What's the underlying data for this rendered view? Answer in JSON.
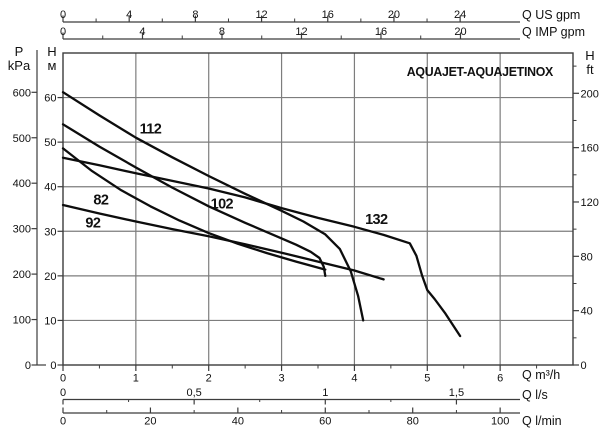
{
  "title": "AQUAJET-AQUAJETINOX",
  "axes": {
    "left_pressure": {
      "sym": "P",
      "unit": "kPa",
      "ticks": [
        600,
        500,
        400,
        300,
        200,
        100,
        0
      ],
      "to_m": 0.10197
    },
    "left_head": {
      "sym": "H",
      "unit": "м",
      "ticks": [
        60,
        50,
        40,
        30,
        20,
        10,
        0
      ],
      "to_m": 1
    },
    "right_head_ft": {
      "sym": "H",
      "unit": "ft",
      "ticks": [
        200,
        160,
        120,
        80,
        40,
        0
      ],
      "minor_ticks": [
        220,
        180,
        140,
        100,
        60,
        20
      ],
      "to_m": 0.3048
    },
    "top_us_gpm": {
      "label": "Q US gpm",
      "ticks": [
        0,
        4,
        8,
        12,
        16,
        20,
        24
      ],
      "minor_ticks": [
        2,
        6,
        10,
        14,
        18,
        22
      ],
      "to_m3h": 0.22712
    },
    "top_imp_gpm": {
      "label": "Q IMP gpm",
      "ticks": [
        0,
        4,
        8,
        12,
        16,
        20
      ],
      "minor_ticks": [
        2,
        6,
        10,
        14,
        18
      ],
      "to_m3h": 0.27277
    },
    "bottom_m3h": {
      "label": "Q m³/h",
      "ticks": [
        0,
        1,
        2,
        3,
        4,
        5,
        6
      ],
      "minor_ticks": [
        0.5,
        1.5,
        2.5,
        3.5,
        4.5,
        5.5,
        6.5
      ],
      "to_m3h": 1
    },
    "bottom_ls": {
      "label": "Q l/s",
      "tick_texts": [
        "0",
        "0,5",
        "1",
        "1,5"
      ],
      "tick_values": [
        0,
        0.5,
        1,
        1.5
      ],
      "minor_ticks": [
        0.25,
        0.75,
        1.25
      ],
      "to_m3h": 3.6
    },
    "bottom_lmin": {
      "label": "Q l/min",
      "ticks": [
        0,
        20,
        40,
        60,
        80,
        100
      ],
      "minor_ticks": [
        10,
        30,
        50,
        70,
        90
      ],
      "to_m3h": 0.06
    }
  },
  "colors": {
    "grid": "#7d7d7d",
    "frame": "#3c3c3c",
    "curve": "#0d0d0d",
    "text": "#111111"
  },
  "chart_data": {
    "type": "line",
    "title": "AQUAJET-AQUAJETINOX",
    "xlabel": "Q (m³/h, l/s, l/min, US gpm, IMP gpm)",
    "ylabel": "H (m, ft) / P (kPa)",
    "xlim": [
      0,
      7
    ],
    "ylim": [
      0,
      70
    ],
    "grid": true,
    "x_gridlines": [
      1,
      2,
      3,
      4,
      5,
      6
    ],
    "y_gridlines": [
      10,
      20,
      30,
      40,
      50,
      60
    ],
    "series": [
      {
        "name": "112",
        "points": [
          [
            0,
            61.2
          ],
          [
            0.5,
            56
          ],
          [
            1,
            51
          ],
          [
            1.5,
            46.6
          ],
          [
            2,
            42.4
          ],
          [
            2.5,
            38.4
          ],
          [
            3,
            34.6
          ],
          [
            3.3,
            32.2
          ],
          [
            3.6,
            29.3
          ],
          [
            3.8,
            26
          ],
          [
            3.95,
            21
          ],
          [
            4.05,
            15.5
          ],
          [
            4.12,
            10
          ]
        ]
      },
      {
        "name": "102",
        "points": [
          [
            0,
            54
          ],
          [
            0.5,
            49
          ],
          [
            1,
            44.3
          ],
          [
            1.5,
            39.8
          ],
          [
            2,
            35.6
          ],
          [
            2.5,
            31.9
          ],
          [
            3,
            28.4
          ],
          [
            3.2,
            27
          ],
          [
            3.4,
            25.4
          ],
          [
            3.52,
            24
          ],
          [
            3.58,
            22
          ],
          [
            3.6,
            20
          ]
        ]
      },
      {
        "name": "82",
        "points": [
          [
            0,
            48.6
          ],
          [
            0.4,
            43.5
          ],
          [
            0.8,
            39.2
          ],
          [
            1.2,
            35.6
          ],
          [
            1.6,
            32.4
          ],
          [
            2,
            29.6
          ],
          [
            2.4,
            27.2
          ],
          [
            2.8,
            25.1
          ],
          [
            3.2,
            23.2
          ],
          [
            3.6,
            21.4
          ]
        ]
      },
      {
        "name": "92",
        "points": [
          [
            0,
            35.9
          ],
          [
            0.5,
            34
          ],
          [
            1,
            32.2
          ],
          [
            1.5,
            30.5
          ],
          [
            2,
            28.9
          ],
          [
            2.5,
            27.1
          ],
          [
            3,
            25.2
          ],
          [
            3.5,
            23.2
          ],
          [
            4,
            21.2
          ],
          [
            4.4,
            19.2
          ]
        ]
      },
      {
        "name": "132",
        "points": [
          [
            0,
            46.5
          ],
          [
            0.5,
            44.8
          ],
          [
            1,
            43
          ],
          [
            1.5,
            41.3
          ],
          [
            2,
            39.6
          ],
          [
            2.5,
            37.6
          ],
          [
            3,
            35.2
          ],
          [
            3.5,
            33
          ],
          [
            4,
            31
          ],
          [
            4.4,
            29.2
          ],
          [
            4.76,
            27.3
          ],
          [
            4.85,
            24.5
          ],
          [
            4.93,
            20
          ],
          [
            5,
            16.8
          ],
          [
            5.1,
            14.8
          ],
          [
            5.25,
            11.5
          ],
          [
            5.45,
            6.5
          ]
        ]
      }
    ],
    "series_labels": [
      {
        "text": "112",
        "q": 1.2,
        "h": 52.9
      },
      {
        "text": "82",
        "q": 0.52,
        "h": 37.0
      },
      {
        "text": "92",
        "q": 0.41,
        "h": 31.9
      },
      {
        "text": "102",
        "q": 2.18,
        "h": 36.1
      },
      {
        "text": "132",
        "q": 4.3,
        "h": 32.6
      }
    ]
  }
}
